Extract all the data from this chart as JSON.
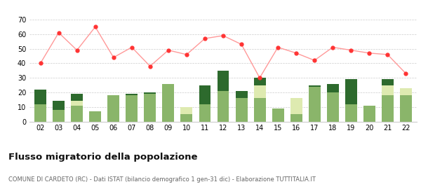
{
  "years": [
    "02",
    "03",
    "04",
    "05",
    "06",
    "07",
    "08",
    "09",
    "10",
    "11",
    "12",
    "13",
    "14",
    "15",
    "16",
    "17",
    "18",
    "19",
    "20",
    "21",
    "22"
  ],
  "iscritti_altri_comuni": [
    12,
    8,
    11,
    7,
    18,
    18,
    19,
    26,
    5,
    12,
    21,
    16,
    16,
    9,
    5,
    24,
    20,
    12,
    11,
    18,
    18
  ],
  "iscritti_estero": [
    0,
    0,
    3,
    0,
    0,
    0,
    0,
    0,
    5,
    0,
    0,
    0,
    9,
    0,
    11,
    0,
    0,
    0,
    0,
    7,
    5
  ],
  "iscritti_altri": [
    10,
    6,
    5,
    0,
    0,
    1,
    1,
    0,
    0,
    13,
    14,
    5,
    5,
    0,
    0,
    1,
    6,
    17,
    0,
    4,
    0
  ],
  "cancellati": [
    40,
    61,
    49,
    65,
    44,
    51,
    38,
    49,
    46,
    57,
    59,
    53,
    30,
    51,
    47,
    42,
    51,
    49,
    47,
    46,
    33
  ],
  "color_altri_comuni": "#8ab56a",
  "color_estero": "#deeab0",
  "color_altri": "#2d6a2d",
  "color_cancellati": "#ff3333",
  "color_cancellati_line": "#ff9999",
  "title": "Flusso migratorio della popolazione",
  "subtitle": "COMUNE DI CARDETO (RC) - Dati ISTAT (bilancio demografico 1 gen-31 dic) - Elaborazione TUTTITALIA.IT",
  "ylim": [
    0,
    70
  ],
  "yticks": [
    0,
    10,
    20,
    30,
    40,
    50,
    60,
    70
  ],
  "bg_color": "#ffffff",
  "grid_color": "#cccccc"
}
